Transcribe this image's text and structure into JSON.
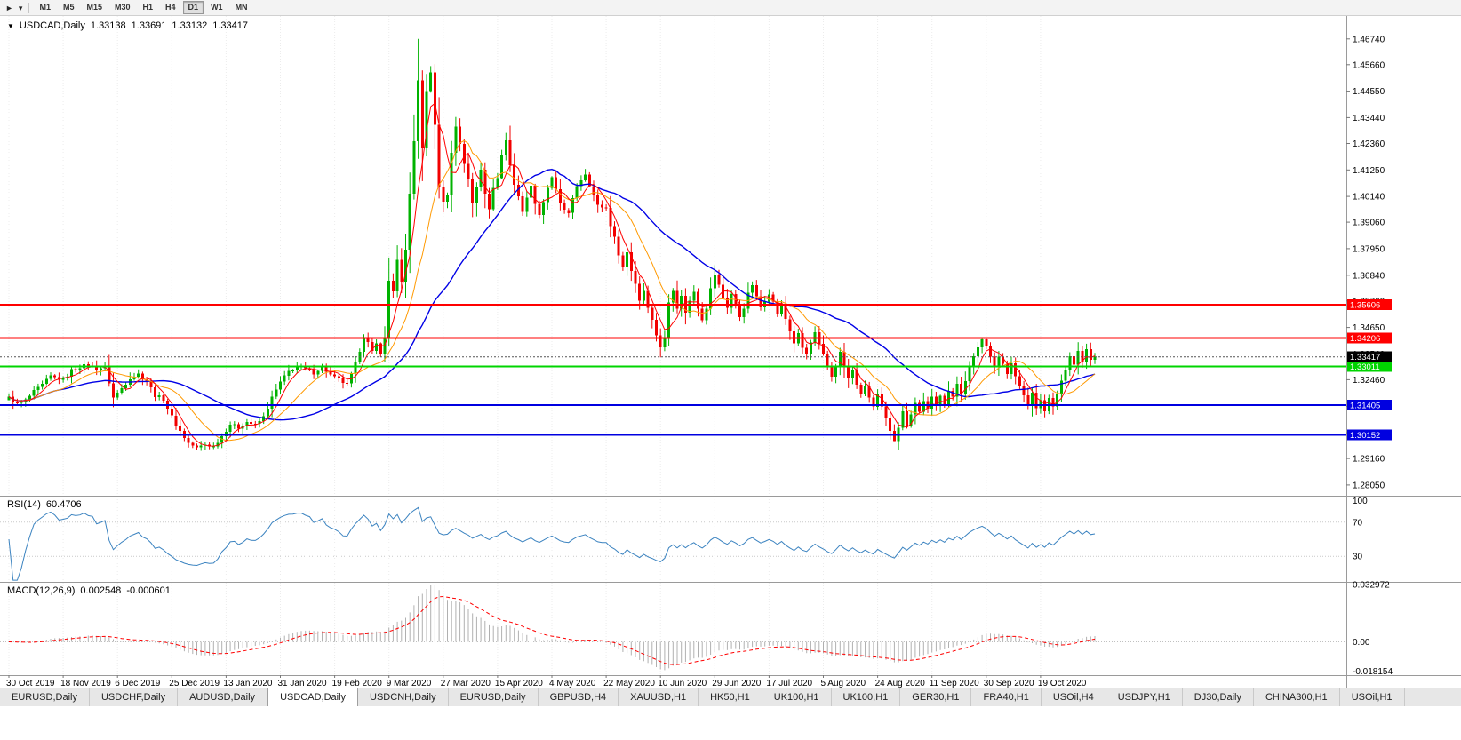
{
  "toolbar": {
    "timeframes": [
      "M1",
      "M5",
      "M15",
      "M30",
      "H1",
      "H4",
      "D1",
      "W1",
      "MN"
    ],
    "active_timeframe": "D1"
  },
  "quote": {
    "symbol_period": "USDCAD,Daily",
    "open": "1.33138",
    "high": "1.33691",
    "low": "1.33132",
    "close": "1.33417"
  },
  "price_axis": {
    "pmax": 1.477,
    "pmin": 1.276,
    "ticks": [
      {
        "l": "1.46740",
        "v": 1.4674
      },
      {
        "l": "1.45660",
        "v": 1.4566
      },
      {
        "l": "1.44550",
        "v": 1.4455
      },
      {
        "l": "1.43440",
        "v": 1.4344
      },
      {
        "l": "1.42360",
        "v": 1.4236
      },
      {
        "l": "1.41250",
        "v": 1.4125
      },
      {
        "l": "1.40140",
        "v": 1.4014
      },
      {
        "l": "1.39060",
        "v": 1.3906
      },
      {
        "l": "1.37950",
        "v": 1.3795
      },
      {
        "l": "1.36840",
        "v": 1.3684
      },
      {
        "l": "1.35760",
        "v": 1.3576
      },
      {
        "l": "1.34650",
        "v": 1.3465
      },
      {
        "l": "1.33540",
        "v": 1.3354
      },
      {
        "l": "1.32460",
        "v": 1.3246
      },
      {
        "l": "1.31350",
        "v": 1.3135
      },
      {
        "l": "1.30240",
        "v": 1.3024
      },
      {
        "l": "1.29160",
        "v": 1.2916
      },
      {
        "l": "1.28050",
        "v": 1.2805
      }
    ]
  },
  "levels": [
    {
      "value": 1.35606,
      "label": "1.35606",
      "color": "#ff0000",
      "text_color": "#ffffff",
      "width": 2
    },
    {
      "value": 1.34206,
      "label": "1.34206",
      "color": "#ff0000",
      "text_color": "#ffffff",
      "width": 2
    },
    {
      "value": 1.33011,
      "label": "1.33011",
      "color": "#00d500",
      "text_color": "#ffffff",
      "width": 2
    },
    {
      "value": 1.31405,
      "label": "1.31405",
      "color": "#0000e0",
      "text_color": "#ffffff",
      "width": 2
    },
    {
      "value": 1.30152,
      "label": "1.30152",
      "color": "#0000e0",
      "text_color": "#ffffff",
      "width": 2
    }
  ],
  "current_price": {
    "value": 1.33417,
    "label": "1.33417",
    "color": "#000000",
    "text_color": "#ffffff"
  },
  "date_axis": [
    "30 Oct 2019",
    "18 Nov 2019",
    "6 Dec 2019",
    "25 Dec 2019",
    "13 Jan 2020",
    "31 Jan 2020",
    "19 Feb 2020",
    "9 Mar 2020",
    "27 Mar 2020",
    "15 Apr 2020",
    "4 May 2020",
    "22 May 2020",
    "10 Jun 2020",
    "29 Jun 2020",
    "17 Jul 2020",
    "5 Aug 2020",
    "24 Aug 2020",
    "11 Sep 2020",
    "30 Sep 2020",
    "19 Oct 2020"
  ],
  "rsi": {
    "label": "RSI(14)",
    "value": "60.4706",
    "period": 14,
    "levels": [
      {
        "v": 100,
        "l": "100"
      },
      {
        "v": 70,
        "l": "70"
      },
      {
        "v": 30,
        "l": "30"
      }
    ]
  },
  "macd": {
    "label": "MACD(12,26,9)",
    "main_value": "0.002548",
    "signal_value": "-0.000601",
    "fast": 12,
    "slow": 26,
    "signal": 9,
    "ymax": 0.032972,
    "ymin": -0.018154,
    "axis": [
      {
        "v": 0.032972,
        "l": "0.032972"
      },
      {
        "v": 0,
        "l": "0.00"
      },
      {
        "v": -0.018154,
        "l": "-0.018154"
      }
    ]
  },
  "colors": {
    "bull": "#00b200",
    "bear": "#f20000",
    "ma_fast": "#ff0000",
    "ma_mid": "#ff9900",
    "ma_slow": "#0000e6",
    "rsi_line": "#3b83c0",
    "rsi_level": "#c9c9c9",
    "macd_hist": "#b0b0b0",
    "macd_signal": "#ff0000",
    "macd_zero": "#c0c0c0",
    "grid": "#ececec",
    "separator": "#9a9a9a",
    "axis_text": "#000000",
    "current_line": "#555555"
  },
  "chart_data": {
    "type": "candlestick",
    "symbol": "USDCAD",
    "timeframe": "Daily",
    "n": 261,
    "last_close": 1.33417,
    "ma": [
      {
        "period": 34,
        "color_key": "ma_slow"
      },
      {
        "period": 13,
        "color_key": "ma_mid"
      },
      {
        "period": 5,
        "color_key": "ma_fast"
      }
    ],
    "anchors": [
      [
        0,
        1.317
      ],
      [
        2,
        1.3145
      ],
      [
        4,
        1.316
      ],
      [
        6,
        1.3195
      ],
      [
        8,
        1.3225
      ],
      [
        10,
        1.326
      ],
      [
        13,
        1.3245
      ],
      [
        15,
        1.3285
      ],
      [
        17,
        1.33
      ],
      [
        19,
        1.331
      ],
      [
        21,
        1.329
      ],
      [
        23,
        1.33
      ],
      [
        25,
        1.317
      ],
      [
        27,
        1.321
      ],
      [
        29,
        1.3255
      ],
      [
        31,
        1.327
      ],
      [
        33,
        1.324
      ],
      [
        35,
        1.318
      ],
      [
        37,
        1.3165
      ],
      [
        39,
        1.309
      ],
      [
        41,
        1.303
      ],
      [
        43,
        1.298
      ],
      [
        45,
        1.296
      ],
      [
        47,
        1.2975
      ],
      [
        49,
        1.2965
      ],
      [
        51,
        1.301
      ],
      [
        53,
        1.306
      ],
      [
        55,
        1.3045
      ],
      [
        57,
        1.307
      ],
      [
        59,
        1.3055
      ],
      [
        61,
        1.309
      ],
      [
        63,
        1.317
      ],
      [
        65,
        1.3235
      ],
      [
        67,
        1.328
      ],
      [
        69,
        1.33
      ],
      [
        71,
        1.329
      ],
      [
        73,
        1.3275
      ],
      [
        75,
        1.33
      ],
      [
        77,
        1.3265
      ],
      [
        79,
        1.3245
      ],
      [
        81,
        1.3225
      ],
      [
        83,
        1.331
      ],
      [
        85,
        1.343
      ],
      [
        86,
        1.34
      ],
      [
        87,
        1.336
      ],
      [
        88,
        1.3395
      ],
      [
        89,
        1.336
      ],
      [
        90,
        1.342
      ],
      [
        91,
        1.366
      ],
      [
        92,
        1.362
      ],
      [
        93,
        1.3745
      ],
      [
        94,
        1.365
      ],
      [
        95,
        1.379
      ],
      [
        96,
        1.403
      ],
      [
        97,
        1.424
      ],
      [
        98,
        1.45
      ],
      [
        99,
        1.422
      ],
      [
        100,
        1.445
      ],
      [
        101,
        1.454
      ],
      [
        102,
        1.431
      ],
      [
        103,
        1.406
      ],
      [
        104,
        1.399
      ],
      [
        105,
        1.402
      ],
      [
        106,
        1.42
      ],
      [
        107,
        1.431
      ],
      [
        108,
        1.423
      ],
      [
        109,
        1.415
      ],
      [
        110,
        1.409
      ],
      [
        111,
        1.399
      ],
      [
        112,
        1.406
      ],
      [
        113,
        1.412
      ],
      [
        114,
        1.403
      ],
      [
        115,
        1.396
      ],
      [
        116,
        1.405
      ],
      [
        117,
        1.409
      ],
      [
        118,
        1.419
      ],
      [
        119,
        1.425
      ],
      [
        120,
        1.414
      ],
      [
        121,
        1.407
      ],
      [
        122,
        1.401
      ],
      [
        123,
        1.3955
      ],
      [
        124,
        1.401
      ],
      [
        125,
        1.406
      ],
      [
        126,
        1.3985
      ],
      [
        127,
        1.393
      ],
      [
        128,
        1.3985
      ],
      [
        129,
        1.405
      ],
      [
        130,
        1.409
      ],
      [
        132,
        1.3985
      ],
      [
        134,
        1.394
      ],
      [
        136,
        1.406
      ],
      [
        138,
        1.411
      ],
      [
        140,
        1.402
      ],
      [
        141,
        1.3975
      ],
      [
        143,
        1.3965
      ],
      [
        144,
        1.3895
      ],
      [
        145,
        1.384
      ],
      [
        146,
        1.3775
      ],
      [
        147,
        1.372
      ],
      [
        148,
        1.378
      ],
      [
        149,
        1.3705
      ],
      [
        150,
        1.365
      ],
      [
        151,
        1.358
      ],
      [
        152,
        1.362
      ],
      [
        153,
        1.3555
      ],
      [
        154,
        1.3495
      ],
      [
        155,
        1.3435
      ],
      [
        156,
        1.3385
      ],
      [
        157,
        1.342
      ],
      [
        158,
        1.357
      ],
      [
        159,
        1.3625
      ],
      [
        160,
        1.355
      ],
      [
        161,
        1.3595
      ],
      [
        162,
        1.353
      ],
      [
        163,
        1.3575
      ],
      [
        164,
        1.3615
      ],
      [
        165,
        1.355
      ],
      [
        166,
        1.35
      ],
      [
        167,
        1.355
      ],
      [
        168,
        1.3625
      ],
      [
        169,
        1.3685
      ],
      [
        170,
        1.364
      ],
      [
        171,
        1.359
      ],
      [
        172,
        1.355
      ],
      [
        173,
        1.3605
      ],
      [
        174,
        1.356
      ],
      [
        175,
        1.351
      ],
      [
        176,
        1.355
      ],
      [
        177,
        1.3605
      ],
      [
        178,
        1.3645
      ],
      [
        179,
        1.359
      ],
      [
        180,
        1.355
      ],
      [
        181,
        1.358
      ],
      [
        182,
        1.361
      ],
      [
        183,
        1.357
      ],
      [
        184,
        1.3525
      ],
      [
        185,
        1.356
      ],
      [
        186,
        1.35
      ],
      [
        187,
        1.345
      ],
      [
        188,
        1.34
      ],
      [
        189,
        1.3435
      ],
      [
        190,
        1.338
      ],
      [
        191,
        1.335
      ],
      [
        192,
        1.34
      ],
      [
        193,
        1.344
      ],
      [
        194,
        1.339
      ],
      [
        195,
        1.335
      ],
      [
        196,
        1.33
      ],
      [
        197,
        1.326
      ],
      [
        198,
        1.331
      ],
      [
        199,
        1.336
      ],
      [
        200,
        1.33
      ],
      [
        201,
        1.325
      ],
      [
        202,
        1.3285
      ],
      [
        203,
        1.323
      ],
      [
        204,
        1.318
      ],
      [
        205,
        1.322
      ],
      [
        206,
        1.317
      ],
      [
        207,
        1.313
      ],
      [
        208,
        1.318
      ],
      [
        209,
        1.313
      ],
      [
        210,
        1.308
      ],
      [
        211,
        1.3035
      ],
      [
        212,
        1.2995
      ],
      [
        213,
        1.305
      ],
      [
        214,
        1.311
      ],
      [
        215,
        1.306
      ],
      [
        216,
        1.3105
      ],
      [
        217,
        1.315
      ],
      [
        218,
        1.311
      ],
      [
        219,
        1.316
      ],
      [
        220,
        1.312
      ],
      [
        221,
        1.317
      ],
      [
        222,
        1.314
      ],
      [
        223,
        1.3185
      ],
      [
        224,
        1.315
      ],
      [
        225,
        1.32
      ],
      [
        226,
        1.317
      ],
      [
        227,
        1.323
      ],
      [
        228,
        1.319
      ],
      [
        229,
        1.3245
      ],
      [
        230,
        1.3295
      ],
      [
        231,
        1.334
      ],
      [
        232,
        1.3385
      ],
      [
        233,
        1.3415
      ],
      [
        234,
        1.339
      ],
      [
        235,
        1.335
      ],
      [
        236,
        1.33
      ],
      [
        237,
        1.3345
      ],
      [
        238,
        1.331
      ],
      [
        239,
        1.327
      ],
      [
        240,
        1.331
      ],
      [
        241,
        1.326
      ],
      [
        242,
        1.322
      ],
      [
        243,
        1.318
      ],
      [
        244,
        1.314
      ],
      [
        245,
        1.3185
      ],
      [
        246,
        1.313
      ],
      [
        247,
        1.3155
      ],
      [
        248,
        1.312
      ],
      [
        249,
        1.3165
      ],
      [
        250,
        1.313
      ],
      [
        251,
        1.3185
      ],
      [
        252,
        1.3235
      ],
      [
        253,
        1.3295
      ],
      [
        254,
        1.335
      ],
      [
        255,
        1.331
      ],
      [
        256,
        1.3365
      ],
      [
        257,
        1.3325
      ],
      [
        258,
        1.3375
      ],
      [
        259,
        1.3335
      ],
      [
        260,
        1.33417
      ]
    ],
    "overrides": {
      "0": {
        "open": 1.316
      },
      "45": {
        "low": 1.2952
      },
      "98": {
        "high": 1.4674
      },
      "101": {
        "high": 1.456
      },
      "119": {
        "high": 1.428
      },
      "156": {
        "low": 1.334
      },
      "212": {
        "low": 1.2994
      },
      "233": {
        "high": 1.3423
      },
      "257": {
        "high": 1.3388
      }
    }
  },
  "tabs": {
    "active_index": 3,
    "items": [
      "EURUSD,Daily",
      "USDCHF,Daily",
      "AUDUSD,Daily",
      "USDCAD,Daily",
      "USDCNH,Daily",
      "EURUSD,Daily",
      "GBPUSD,H4",
      "XAUUSD,H1",
      "HK50,H1",
      "UK100,H1",
      "UK100,H1",
      "GER30,H1",
      "FRA40,H1",
      "USOil,H4",
      "USDJPY,H1",
      "DJ30,Daily",
      "CHINA300,H1",
      "USOil,H1"
    ]
  }
}
